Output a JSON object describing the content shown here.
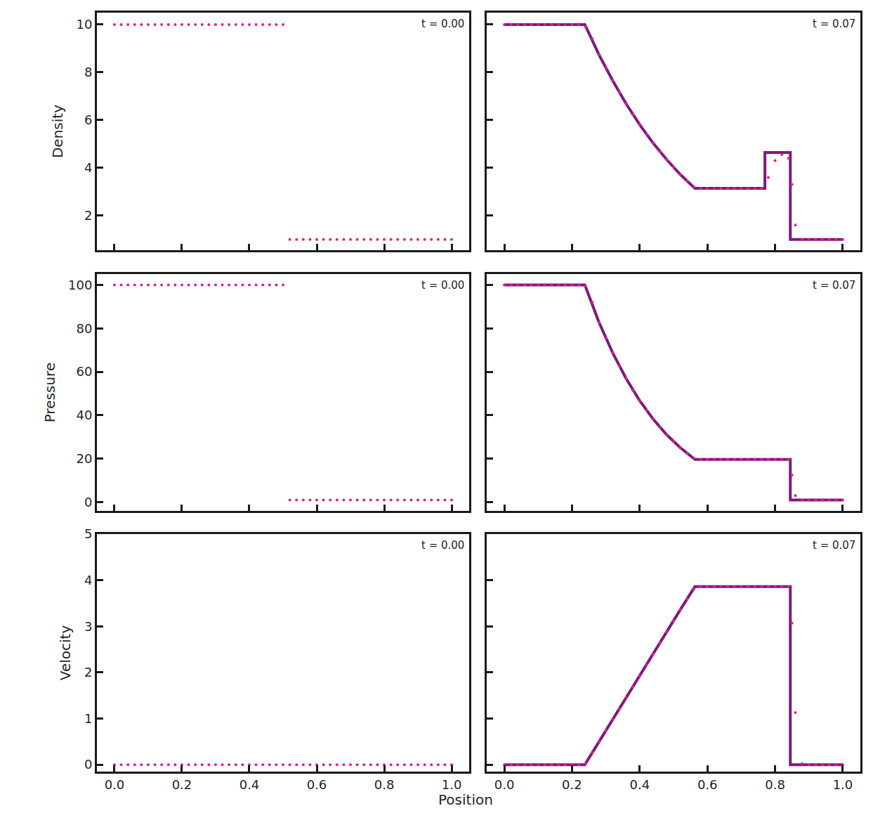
{
  "chart_data": [
    {
      "type": "scatter",
      "ylabel": "Density",
      "annotations": [
        {
          "text": "t = 0.00"
        }
      ],
      "xlim": [
        -0.052,
        1.052
      ],
      "ylim": [
        0.55,
        10.5
      ],
      "xticks": [
        {
          "value": 0,
          "label": "0.0"
        },
        0.2,
        0.4,
        0.6,
        0.8,
        {
          "value": 1,
          "label": "1.0"
        }
      ],
      "yticks": [
        2,
        4,
        6,
        8,
        10
      ],
      "grid": false,
      "tick_labels": "y",
      "series": [
        {
          "type": "scatter",
          "marker": "circle",
          "color": "#e0218a",
          "x": [
            0,
            0.02,
            0.04,
            0.06,
            0.08,
            0.1,
            0.12,
            0.14,
            0.16,
            0.18,
            0.2,
            0.22,
            0.24,
            0.26,
            0.28,
            0.3,
            0.32,
            0.34,
            0.36,
            0.38,
            0.4,
            0.42,
            0.44,
            0.46,
            0.48,
            0.5,
            0.52,
            0.54,
            0.56,
            0.58,
            0.6,
            0.62,
            0.64,
            0.66,
            0.68,
            0.7,
            0.72,
            0.74,
            0.76,
            0.78,
            0.8,
            0.82,
            0.84,
            0.86,
            0.88,
            0.9,
            0.92,
            0.94,
            0.96,
            0.98,
            1
          ],
          "values": [
            10,
            10,
            10,
            10,
            10,
            10,
            10,
            10,
            10,
            10,
            10,
            10,
            10,
            10,
            10,
            10,
            10,
            10,
            10,
            10,
            10,
            10,
            10,
            10,
            10,
            10,
            1,
            1,
            1,
            1,
            1,
            1,
            1,
            1,
            1,
            1,
            1,
            1,
            1,
            1,
            1,
            1,
            1,
            1,
            1,
            1,
            1,
            1,
            1,
            1,
            1
          ]
        }
      ]
    },
    {
      "type": "scatter",
      "annotations": [
        {
          "text": "t = 0.07"
        }
      ],
      "xlim": [
        -0.052,
        1.052
      ],
      "ylim": [
        0.55,
        10.5
      ],
      "xticks": [
        {
          "value": 0,
          "label": "0.0"
        },
        0.2,
        0.4,
        0.6,
        0.8,
        {
          "value": 1,
          "label": "1.0"
        }
      ],
      "yticks": [
        2,
        4,
        6,
        8,
        10
      ],
      "grid": false,
      "tick_labels": false,
      "series": [
        {
          "type": "line",
          "line_style": "solid",
          "color": "#7d1a7d",
          "x": [
            0,
            0.238,
            0.28,
            0.32,
            0.36,
            0.4,
            0.44,
            0.48,
            0.52,
            0.563,
            0.77,
            0.77,
            0.845,
            0.845,
            1
          ],
          "values": [
            10,
            10,
            8.73,
            7.66,
            6.68,
            5.81,
            5.03,
            4.34,
            3.72,
            3.14,
            3.14,
            4.64,
            4.64,
            1,
            1
          ]
        },
        {
          "type": "scatter",
          "marker": "circle",
          "color": "#e0218a",
          "x": [
            0,
            0.02,
            0.04,
            0.06,
            0.08,
            0.1,
            0.12,
            0.14,
            0.16,
            0.18,
            0.2,
            0.22,
            0.24,
            0.26,
            0.28,
            0.3,
            0.32,
            0.34,
            0.36,
            0.38,
            0.4,
            0.42,
            0.44,
            0.46,
            0.48,
            0.5,
            0.52,
            0.54,
            0.56,
            0.58,
            0.6,
            0.62,
            0.64,
            0.66,
            0.68,
            0.7,
            0.72,
            0.74,
            0.76,
            0.78,
            0.8,
            0.82,
            0.84,
            0.85,
            0.86,
            0.88,
            0.9,
            0.92,
            0.94,
            0.96,
            0.98,
            1
          ],
          "values": [
            10,
            10,
            10,
            10,
            10,
            10,
            10,
            10,
            10,
            10,
            10,
            10,
            9.9,
            9.4,
            8.75,
            8.18,
            7.66,
            7.16,
            6.68,
            6.23,
            5.81,
            5.41,
            5.03,
            4.67,
            4.34,
            4.02,
            3.72,
            3.45,
            3.2,
            3.14,
            3.14,
            3.14,
            3.14,
            3.14,
            3.14,
            3.14,
            3.14,
            3.14,
            3.14,
            3.6,
            4.3,
            4.55,
            4.4,
            3.3,
            1.6,
            1,
            1,
            1,
            1,
            1,
            1,
            1
          ]
        }
      ]
    },
    {
      "type": "scatter",
      "ylabel": "Pressure",
      "annotations": [
        {
          "text": "t = 0.00"
        }
      ],
      "xlim": [
        -0.052,
        1.052
      ],
      "ylim": [
        -4,
        105
      ],
      "xticks": [
        {
          "value": 0,
          "label": "0.0"
        },
        0.2,
        0.4,
        0.6,
        0.8,
        {
          "value": 1,
          "label": "1.0"
        }
      ],
      "yticks": [
        0,
        20,
        40,
        60,
        80,
        100
      ],
      "grid": false,
      "tick_labels": "y",
      "series": [
        {
          "type": "scatter",
          "marker": "circle",
          "color": "#e0218a",
          "x": [
            0,
            0.02,
            0.04,
            0.06,
            0.08,
            0.1,
            0.12,
            0.14,
            0.16,
            0.18,
            0.2,
            0.22,
            0.24,
            0.26,
            0.28,
            0.3,
            0.32,
            0.34,
            0.36,
            0.38,
            0.4,
            0.42,
            0.44,
            0.46,
            0.48,
            0.5,
            0.52,
            0.54,
            0.56,
            0.58,
            0.6,
            0.62,
            0.64,
            0.66,
            0.68,
            0.7,
            0.72,
            0.74,
            0.76,
            0.78,
            0.8,
            0.82,
            0.84,
            0.86,
            0.88,
            0.9,
            0.92,
            0.94,
            0.96,
            0.98,
            1
          ],
          "values": [
            100,
            100,
            100,
            100,
            100,
            100,
            100,
            100,
            100,
            100,
            100,
            100,
            100,
            100,
            100,
            100,
            100,
            100,
            100,
            100,
            100,
            100,
            100,
            100,
            100,
            100,
            1,
            1,
            1,
            1,
            1,
            1,
            1,
            1,
            1,
            1,
            1,
            1,
            1,
            1,
            1,
            1,
            1,
            1,
            1,
            1,
            1,
            1,
            1,
            1,
            1
          ]
        }
      ]
    },
    {
      "type": "scatter",
      "annotations": [
        {
          "text": "t = 0.07"
        }
      ],
      "xlim": [
        -0.052,
        1.052
      ],
      "ylim": [
        -4,
        105
      ],
      "xticks": [
        {
          "value": 0,
          "label": "0.0"
        },
        0.2,
        0.4,
        0.6,
        0.8,
        {
          "value": 1,
          "label": "1.0"
        }
      ],
      "yticks": [
        0,
        20,
        40,
        60,
        80,
        100
      ],
      "grid": false,
      "tick_labels": false,
      "series": [
        {
          "type": "line",
          "line_style": "solid",
          "color": "#7d1a7d",
          "x": [
            0,
            0.238,
            0.28,
            0.32,
            0.36,
            0.4,
            0.44,
            0.48,
            0.52,
            0.563,
            0.845,
            0.845,
            1
          ],
          "values": [
            100,
            100,
            82.7,
            68.8,
            56.9,
            46.7,
            38.2,
            31,
            25.1,
            19.7,
            19.7,
            1,
            1
          ]
        },
        {
          "type": "scatter",
          "marker": "circle",
          "color": "#e0218a",
          "x": [
            0,
            0.02,
            0.04,
            0.06,
            0.08,
            0.1,
            0.12,
            0.14,
            0.16,
            0.18,
            0.2,
            0.22,
            0.24,
            0.26,
            0.28,
            0.3,
            0.32,
            0.34,
            0.36,
            0.38,
            0.4,
            0.42,
            0.44,
            0.46,
            0.48,
            0.5,
            0.52,
            0.54,
            0.56,
            0.58,
            0.6,
            0.62,
            0.64,
            0.66,
            0.68,
            0.7,
            0.72,
            0.74,
            0.76,
            0.78,
            0.8,
            0.82,
            0.84,
            0.85,
            0.86,
            0.88,
            0.9,
            0.92,
            0.94,
            0.96,
            0.98,
            1
          ],
          "values": [
            100,
            100,
            100,
            100,
            100,
            100,
            100,
            100,
            100,
            100,
            100,
            100,
            99.5,
            92,
            82.7,
            75.5,
            68.8,
            62.6,
            56.9,
            51.5,
            46.7,
            42.3,
            38.2,
            34.5,
            31,
            27.9,
            25.1,
            22.5,
            20.3,
            19.7,
            19.7,
            19.7,
            19.7,
            19.7,
            19.7,
            19.7,
            19.7,
            19.7,
            19.7,
            19.7,
            19.7,
            19.7,
            19.7,
            12.5,
            3,
            1,
            1,
            1,
            1,
            1,
            1,
            1
          ]
        }
      ]
    },
    {
      "type": "scatter",
      "ylabel": "Velocity",
      "xlabel": "Position",
      "annotations": [
        {
          "text": "t = 0.00"
        }
      ],
      "xlim": [
        -0.052,
        1.052
      ],
      "ylim": [
        -0.15,
        5
      ],
      "xticks": [
        {
          "value": 0,
          "label": "0.0"
        },
        0.2,
        0.4,
        0.6,
        0.8,
        {
          "value": 1,
          "label": "1.0"
        }
      ],
      "yticks": [
        0,
        1,
        2,
        3,
        4,
        5
      ],
      "grid": false,
      "tick_labels": true,
      "series": [
        {
          "type": "scatter",
          "marker": "circle",
          "color": "#e0218a",
          "x": [
            0,
            0.02,
            0.04,
            0.06,
            0.08,
            0.1,
            0.12,
            0.14,
            0.16,
            0.18,
            0.2,
            0.22,
            0.24,
            0.26,
            0.28,
            0.3,
            0.32,
            0.34,
            0.36,
            0.38,
            0.4,
            0.42,
            0.44,
            0.46,
            0.48,
            0.5,
            0.52,
            0.54,
            0.56,
            0.58,
            0.6,
            0.62,
            0.64,
            0.66,
            0.68,
            0.7,
            0.72,
            0.74,
            0.76,
            0.78,
            0.8,
            0.82,
            0.84,
            0.86,
            0.88,
            0.9,
            0.92,
            0.94,
            0.96,
            0.98,
            1
          ],
          "values": [
            0,
            0,
            0,
            0,
            0,
            0,
            0,
            0,
            0,
            0,
            0,
            0,
            0,
            0,
            0,
            0,
            0,
            0,
            0,
            0,
            0,
            0,
            0,
            0,
            0,
            0,
            0,
            0,
            0,
            0,
            0,
            0,
            0,
            0,
            0,
            0,
            0,
            0,
            0,
            0,
            0,
            0,
            0,
            0,
            0,
            0,
            0,
            0,
            0,
            0,
            0
          ]
        }
      ]
    },
    {
      "type": "scatter",
      "annotations": [
        {
          "text": "t = 0.07"
        }
      ],
      "xlim": [
        -0.052,
        1.052
      ],
      "ylim": [
        -0.15,
        5
      ],
      "xticks": [
        {
          "value": 0,
          "label": "0.0"
        },
        0.2,
        0.4,
        0.6,
        0.8,
        {
          "value": 1,
          "label": "1.0"
        }
      ],
      "yticks": [
        0,
        1,
        2,
        3,
        4,
        5
      ],
      "grid": false,
      "tick_labels": "x",
      "series": [
        {
          "type": "line",
          "line_style": "solid",
          "color": "#7d1a7d",
          "x": [
            0,
            0.238,
            0.28,
            0.32,
            0.36,
            0.4,
            0.44,
            0.48,
            0.52,
            0.563,
            0.845,
            0.845,
            1
          ],
          "values": [
            0,
            0,
            0.5,
            0.98,
            1.45,
            1.93,
            2.4,
            2.88,
            3.36,
            3.86,
            3.86,
            0,
            0
          ]
        },
        {
          "type": "scatter",
          "marker": "circle",
          "color": "#e0218a",
          "x": [
            0,
            0.02,
            0.04,
            0.06,
            0.08,
            0.1,
            0.12,
            0.14,
            0.16,
            0.18,
            0.2,
            0.22,
            0.24,
            0.26,
            0.28,
            0.3,
            0.32,
            0.34,
            0.36,
            0.38,
            0.4,
            0.42,
            0.44,
            0.46,
            0.48,
            0.5,
            0.52,
            0.54,
            0.56,
            0.58,
            0.6,
            0.62,
            0.64,
            0.66,
            0.68,
            0.7,
            0.72,
            0.74,
            0.76,
            0.78,
            0.8,
            0.82,
            0.84,
            0.85,
            0.86,
            0.88,
            0.9,
            0.92,
            0.94,
            0.96,
            0.98,
            1
          ],
          "values": [
            0,
            0,
            0,
            0,
            0,
            0,
            0,
            0,
            0,
            0,
            0,
            0,
            0.03,
            0.26,
            0.5,
            0.74,
            0.98,
            1.21,
            1.45,
            1.69,
            1.93,
            2.17,
            2.4,
            2.64,
            2.88,
            3.12,
            3.36,
            3.59,
            3.8,
            3.86,
            3.86,
            3.86,
            3.86,
            3.86,
            3.86,
            3.86,
            3.86,
            3.86,
            3.86,
            3.86,
            3.86,
            3.86,
            3.86,
            3.07,
            1.13,
            0.02,
            0,
            0,
            0,
            0,
            0,
            0
          ]
        }
      ]
    }
  ]
}
